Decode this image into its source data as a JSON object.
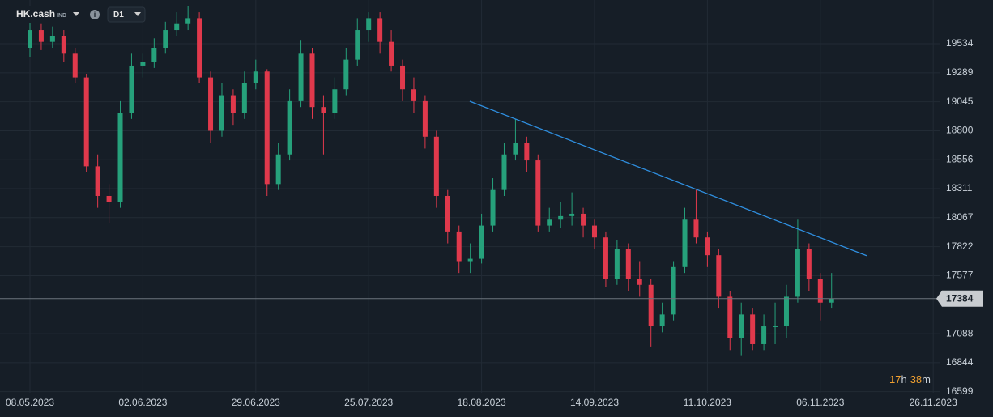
{
  "chart_data": {
    "type": "candlestick",
    "symbol": "HK.cash",
    "asset_class": "IND",
    "timeframe": "D1",
    "up_color": "#26a17b",
    "down_color": "#e0394c",
    "grid": true,
    "xlim": [
      -2.654,
      80.56
    ],
    "xticks": [
      {
        "value": 0,
        "label": "08.05.2023"
      },
      {
        "value": 10,
        "label": "02.06.2023"
      },
      {
        "value": 20,
        "label": "29.06.2023"
      },
      {
        "value": 30,
        "label": "25.07.2023"
      },
      {
        "value": 40,
        "label": "18.08.2023"
      },
      {
        "value": 50,
        "label": "14.09.2023"
      },
      {
        "value": 60,
        "label": "11.10.2023"
      },
      {
        "value": 70,
        "label": "06.11.2023"
      },
      {
        "value": 80,
        "label": "26.11.2023"
      }
    ],
    "ylim": [
      16590,
      19903
    ],
    "yticks": [
      16599,
      16844,
      17088,
      17577,
      17822,
      18067,
      18311,
      18556,
      18800,
      19045,
      19289,
      19534
    ],
    "open": [
      19500,
      19650,
      19550,
      19600,
      19450,
      19250,
      18500,
      18250,
      18200,
      18950,
      19350,
      19380,
      19500,
      19650,
      19700,
      19750,
      19250,
      18800,
      19100,
      18950,
      19200,
      19300,
      18350,
      18600,
      19050,
      19450,
      19000,
      18950,
      19150,
      19400,
      19650,
      19750,
      19550,
      19350,
      19150,
      19050,
      18750,
      18250,
      17950,
      17700,
      17720,
      18000,
      18300,
      18600,
      18700,
      18550,
      18000,
      18050,
      18080,
      18100,
      18000,
      17900,
      17550,
      17800,
      17550,
      17500,
      17150,
      17250,
      17650,
      18050,
      17900,
      17750,
      17400,
      17050,
      17250,
      17000,
      17150,
      17150,
      17400,
      17800,
      17550,
      17350
    ],
    "high": [
      19720,
      19700,
      19680,
      19650,
      19500,
      19280,
      18600,
      18350,
      19050,
      19450,
      19450,
      19580,
      19720,
      19800,
      19850,
      19800,
      19300,
      19200,
      19150,
      19300,
      19400,
      19320,
      18700,
      19150,
      19560,
      19500,
      19100,
      19250,
      19500,
      19750,
      19800,
      19800,
      19650,
      19400,
      19250,
      19100,
      18800,
      18300,
      18000,
      17850,
      18100,
      18400,
      18700,
      18900,
      18750,
      18600,
      18150,
      18200,
      18280,
      18150,
      18050,
      17950,
      17880,
      17850,
      17700,
      17550,
      17350,
      17700,
      18150,
      18300,
      17950,
      17800,
      17450,
      17350,
      17300,
      17250,
      17350,
      17500,
      18050,
      17850,
      17600,
      17600
    ],
    "low": [
      19420,
      19480,
      19500,
      19380,
      19200,
      18450,
      18150,
      18020,
      18150,
      18900,
      19250,
      19330,
      19450,
      19600,
      19650,
      19200,
      18700,
      18750,
      18850,
      18900,
      19150,
      18250,
      18300,
      18550,
      19000,
      18900,
      18600,
      18900,
      19100,
      19350,
      19550,
      19450,
      19300,
      19050,
      18950,
      18650,
      18150,
      17850,
      17600,
      17600,
      17680,
      17950,
      18250,
      18550,
      18450,
      17950,
      17950,
      17980,
      18000,
      17900,
      17800,
      17480,
      17500,
      17450,
      17400,
      16980,
      17100,
      17200,
      17600,
      17850,
      17650,
      17300,
      16950,
      16900,
      16950,
      16950,
      17000,
      17050,
      17350,
      17450,
      17200,
      17300
    ],
    "close": [
      19650,
      19550,
      19600,
      19450,
      19250,
      18500,
      18250,
      18200,
      18950,
      19350,
      19380,
      19500,
      19650,
      19700,
      19750,
      19250,
      18800,
      19100,
      18950,
      19200,
      19300,
      18350,
      18600,
      19050,
      19450,
      19000,
      18950,
      19150,
      19400,
      19650,
      19750,
      19550,
      19350,
      19150,
      19050,
      18750,
      18250,
      17950,
      17700,
      17720,
      18000,
      18300,
      18600,
      18700,
      18550,
      18000,
      18050,
      18080,
      18100,
      18000,
      17900,
      17550,
      17800,
      17550,
      17500,
      17150,
      17250,
      17650,
      18050,
      17900,
      17750,
      17400,
      17050,
      17250,
      17000,
      17150,
      17150,
      17400,
      17800,
      17550,
      17350,
      17384
    ],
    "trendline": {
      "color": "#2f8fe0",
      "x": [
        38.95,
        74.1
      ],
      "y": [
        19049,
        17746
      ]
    },
    "current_price": 17384,
    "countdown": [
      "17",
      "h",
      "38",
      "m"
    ]
  }
}
